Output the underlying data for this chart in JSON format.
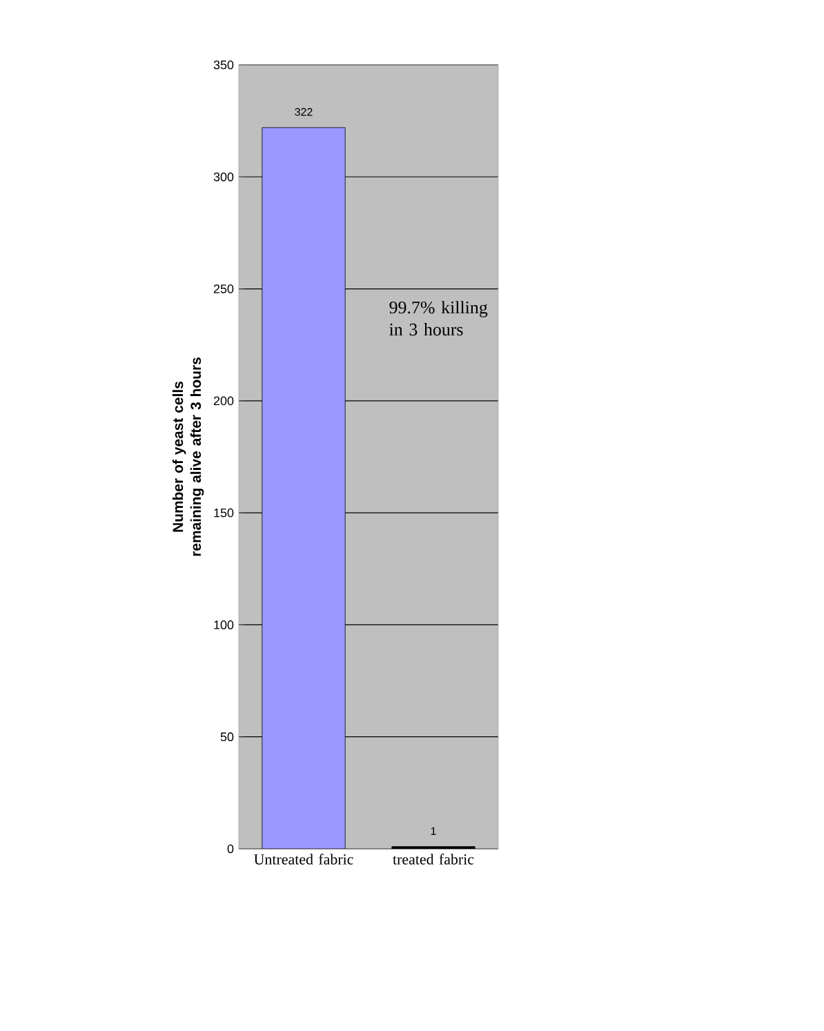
{
  "chart_data": {
    "type": "bar",
    "ylabel": "Number of yeast cells remaining alive after 3 hours",
    "categories": [
      "Untreated fabric",
      "treated fabric"
    ],
    "values": [
      322,
      1
    ],
    "colors": [
      "#9999ff",
      "#000000"
    ],
    "ylim": [
      0,
      350
    ],
    "yticks": [
      0,
      50,
      100,
      150,
      200,
      250,
      300,
      350
    ],
    "grid": "y",
    "data_labels": true,
    "annotations": [
      "99.7% killing in 3 hours"
    ]
  }
}
